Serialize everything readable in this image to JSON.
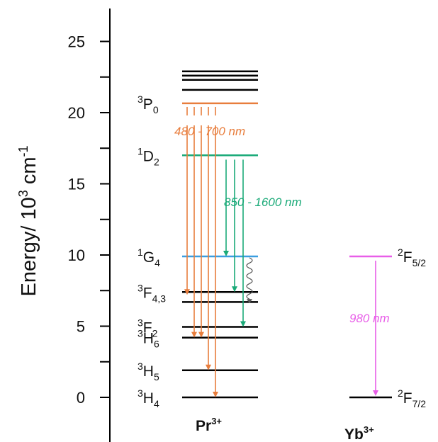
{
  "axis": {
    "ylabel_main": "Energy/ 10",
    "ylabel_sup3": "3",
    "ylabel_unit": " cm",
    "ylabel_supneg": "-1",
    "ticks": [
      {
        "value": 0,
        "label": "0"
      },
      {
        "value": 5,
        "label": "5"
      },
      {
        "value": 10,
        "label": "10"
      },
      {
        "value": 15,
        "label": "15"
      },
      {
        "value": 20,
        "label": "20"
      },
      {
        "value": 25,
        "label": "25"
      }
    ],
    "minor_ticks": [
      2.5,
      7.5,
      12.5,
      17.5,
      22.5
    ]
  },
  "ions": {
    "pr": {
      "base": "Pr",
      "sup": "3+"
    },
    "yb": {
      "base": "Yb",
      "sup": "3+"
    }
  },
  "pr_levels": [
    {
      "energy": 0,
      "color": "#000000",
      "label": {
        "sup": "3",
        "base": "H",
        "sub": "4"
      }
    },
    {
      "energy": 1.9,
      "color": "#000000",
      "label": {
        "sup": "3",
        "base": "H",
        "sub": "5"
      }
    },
    {
      "energy": 4.2,
      "color": "#000000",
      "label": {
        "sup": "3",
        "base": "H",
        "sub": "6"
      }
    },
    {
      "energy": 4.95,
      "color": "#000000",
      "label": {
        "sup": "3",
        "base": "F",
        "sub": "2"
      }
    },
    {
      "energy": 6.7,
      "color": "#000000",
      "label": null
    },
    {
      "energy": 7.4,
      "color": "#000000",
      "label": {
        "sup": "3",
        "base": "F",
        "sub": "4,3"
      }
    },
    {
      "energy": 9.9,
      "color": "#3a9ee0",
      "label": {
        "sup": "1",
        "base": "G",
        "sub": "4"
      }
    },
    {
      "energy": 17.0,
      "color": "#1aaa78",
      "label": {
        "sup": "1",
        "base": "D",
        "sub": "2"
      }
    },
    {
      "energy": 20.65,
      "color": "#e87d3c",
      "label": {
        "sup": "3",
        "base": "P",
        "sub": "0"
      }
    },
    {
      "energy": 21.6,
      "color": "#000000",
      "label": null
    },
    {
      "energy": 22.3,
      "color": "#000000",
      "label": null
    },
    {
      "energy": 22.6,
      "color": "#000000",
      "label": null
    },
    {
      "energy": 22.9,
      "color": "#000000",
      "label": null
    }
  ],
  "yb_levels": [
    {
      "energy": 0,
      "color": "#000000",
      "label": {
        "sup": "2",
        "base": "F",
        "sub": "7/2"
      }
    },
    {
      "energy": 9.9,
      "color": "#e85ee8",
      "label": {
        "sup": "2",
        "base": "F",
        "sub": "5/2"
      }
    }
  ],
  "transitions": {
    "orange": {
      "color": "#e87d3c",
      "label": "480 - 700 nm",
      "from": 20.4,
      "to": [
        7.2,
        4.2,
        1.9,
        0
      ]
    },
    "green": {
      "color": "#1aaa78",
      "label": "850 - 1600 nm",
      "from": 16.7,
      "to": [
        9.9,
        7.4,
        4.95
      ]
    },
    "yb": {
      "color": "#e85ee8",
      "label": "980 nm",
      "from": 9.6,
      "to": 0
    }
  },
  "colors": {
    "orange": "#e87d3c",
    "green": "#1aaa78",
    "blue": "#3a9ee0",
    "magenta": "#e85ee8",
    "black": "#000000"
  }
}
